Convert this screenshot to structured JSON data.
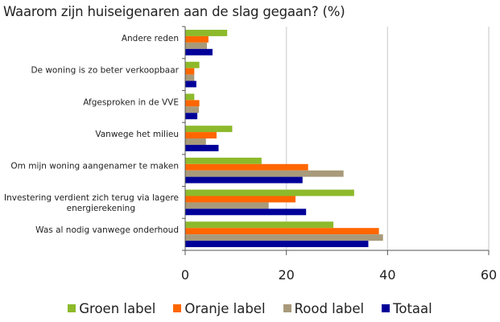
{
  "chart_data": {
    "type": "bar",
    "orientation": "horizontal",
    "title": "Waarom zijn huiseigenaren aan de slag gegaan? (%)",
    "xlabel": "",
    "ylabel": "",
    "xlim": [
      0,
      60
    ],
    "xticks": [
      "0",
      "20",
      "40",
      "60"
    ],
    "grid": true,
    "legend_position": "bottom",
    "categories": [
      "Andere reden",
      "De woning is zo beter verkoopbaar",
      "Afgesproken in de VVE",
      "Vanwege het milieu",
      "Om mijn woning aangenamer te maken",
      "Investering verdient zich terug via lagere energierekening",
      "Was al nodig vanwege onderhoud"
    ],
    "category_lines": [
      [
        "Andere reden"
      ],
      [
        "De woning is zo beter verkoopbaar"
      ],
      [
        "Afgesproken in de VVE"
      ],
      [
        "Vanwege het milieu"
      ],
      [
        "Om mijn woning aangenamer te maken"
      ],
      [
        "Investering verdient zich terug via lagere",
        "energierekening"
      ],
      [
        "Was al nodig vanwege onderhoud"
      ]
    ],
    "series": [
      {
        "name": "Groen label",
        "color": "#8DBA2B",
        "values": [
          8.3,
          2.8,
          1.8,
          9.3,
          15.1,
          33.4,
          29.3
        ]
      },
      {
        "name": "Oranje label",
        "color": "#FF6600",
        "values": [
          4.6,
          1.8,
          2.8,
          6.2,
          24.3,
          21.8,
          38.3
        ]
      },
      {
        "name": "Rood label",
        "color": "#A89A7A",
        "values": [
          4.3,
          1.8,
          2.7,
          4.1,
          31.3,
          16.5,
          39.1
        ]
      },
      {
        "name": "Totaal",
        "color": "#000099",
        "values": [
          5.4,
          2.2,
          2.4,
          6.6,
          23.2,
          23.9,
          36.2
        ]
      }
    ]
  }
}
